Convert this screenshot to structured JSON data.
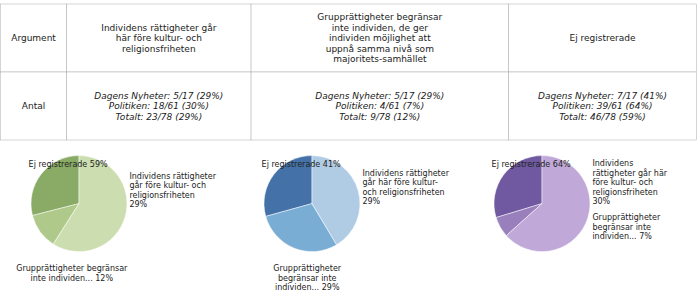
{
  "chart_data": [
    {
      "type": "table",
      "columns": [
        "Argument",
        "Individens rättigheter går\nhär före kultur- och\nreligionsfriheten",
        "Grupprättigheter begränsar\ninte individen, de ger\nindividen möjlighet att\nuppnå samma nivå som\nmajoritets-samhället",
        "Ej registrerade"
      ],
      "rows": [
        [
          "Antal",
          "Dagens Nyheter: 5/17 (29%)\nPolitiken: 18/61 (30%)\nTotalt: 23/78 (29%)",
          "Dagens Nyheter: 5/17 (29%)\nPolitiken: 4/61 (7%)\nTotalt: 9/78 (12%)",
          "Dagens Nyheter: 7/17 (41%)\nPolitiken: 39/61 (64%)\nTotalt: 46/78 (59%)"
        ]
      ]
    },
    {
      "type": "pie",
      "values": [
        29,
        12,
        59
      ],
      "colors": [
        "#8aab65",
        "#afc98a",
        "#ccdeb0"
      ],
      "annotations": [
        "Ej registrerade 59%",
        "Individens rättigheter\ngår före kultur- och\nreligionsfriheten\n29%",
        "Grupprättigheter begränsar\ninte individen... 12%"
      ]
    },
    {
      "type": "pie",
      "values": [
        29,
        29,
        41
      ],
      "colors": [
        "#4472a8",
        "#7aadd4",
        "#b0cce5"
      ],
      "annotations": [
        "Ej registrerade 41%",
        "Individens rättigheter\ngår här före kultur-\noch religionsfriheten\n29%",
        "Grupprättigheter\nbegränsar inte\nindividen... 29%"
      ]
    },
    {
      "type": "pie",
      "values": [
        30,
        7,
        64
      ],
      "colors": [
        "#7059a0",
        "#9980bc",
        "#c0a8d8"
      ],
      "annotations": [
        "Ej registrerade 64%",
        "Individens\nrättigheter går här\nföre kultur- och\nreligionsfriheten\n30%",
        "Grupprättigheter\nbegränsar inte\nindividen... 7%"
      ]
    }
  ]
}
